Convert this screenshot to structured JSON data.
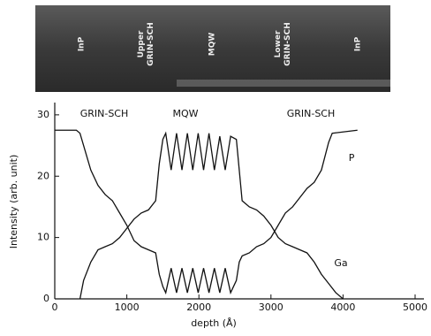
{
  "image_labels": [
    [
      "InP"
    ],
    [
      "Upper",
      "GRIN-SCH"
    ],
    [
      "MQW"
    ],
    [
      "Lower",
      "GRIN-SCH"
    ],
    [
      "InP"
    ]
  ],
  "chart_data": {
    "type": "line",
    "x_label": "depth (Å)",
    "y_label": "Intensity (arb. unit)",
    "annotations": [
      "GRIN-SCH",
      "MQW",
      "GRIN-SCH"
    ],
    "xlim": [
      0,
      5000
    ],
    "xticks": [
      0,
      1000,
      2000,
      3000,
      4000,
      5000
    ],
    "ylim": [
      0,
      32
    ],
    "yticks": [
      0,
      10,
      20,
      30
    ],
    "series": [
      {
        "name": "P",
        "color": "#111111",
        "x": [
          0,
          300,
          350,
          400,
          500,
          600,
          700,
          800,
          900,
          1000,
          1100,
          1200,
          1300,
          1400,
          1450,
          1500,
          1540,
          1615,
          1690,
          1765,
          1840,
          1915,
          1990,
          2065,
          2140,
          2215,
          2290,
          2365,
          2440,
          2520,
          2560,
          2600,
          2700,
          2800,
          2900,
          3000,
          3100,
          3200,
          3300,
          3400,
          3500,
          3600,
          3700,
          3800,
          3850,
          4200
        ],
        "values": [
          27.5,
          27.5,
          27,
          25,
          21,
          18.5,
          17,
          16,
          14,
          12,
          9.5,
          8.5,
          8,
          7.5,
          4,
          2,
          1,
          5,
          1,
          5,
          1,
          5,
          1,
          5,
          1,
          5,
          1,
          5,
          1,
          3,
          6,
          7,
          7.5,
          8.5,
          9,
          10,
          12,
          14,
          15,
          16.5,
          18,
          19,
          21,
          25.5,
          27,
          27.5
        ]
      },
      {
        "name": "Ga",
        "color": "#111111",
        "x": [
          350,
          400,
          500,
          600,
          700,
          800,
          900,
          1000,
          1100,
          1200,
          1300,
          1400,
          1450,
          1500,
          1540,
          1615,
          1690,
          1765,
          1840,
          1915,
          1990,
          2065,
          2140,
          2215,
          2290,
          2365,
          2440,
          2520,
          2560,
          2600,
          2700,
          2800,
          2900,
          3000,
          3100,
          3200,
          3300,
          3400,
          3500,
          3600,
          3700,
          3800,
          3900,
          4000
        ],
        "values": [
          0,
          3,
          6,
          8,
          8.5,
          9,
          10,
          11.5,
          13,
          14,
          14.5,
          16,
          22,
          26,
          27,
          21,
          27,
          21,
          27,
          21,
          27,
          21,
          27,
          21,
          26.5,
          21,
          26.5,
          26,
          21,
          16,
          15,
          14.5,
          13.5,
          12,
          10,
          9,
          8.5,
          8,
          7.5,
          6,
          4,
          2.5,
          1,
          0
        ]
      }
    ]
  }
}
